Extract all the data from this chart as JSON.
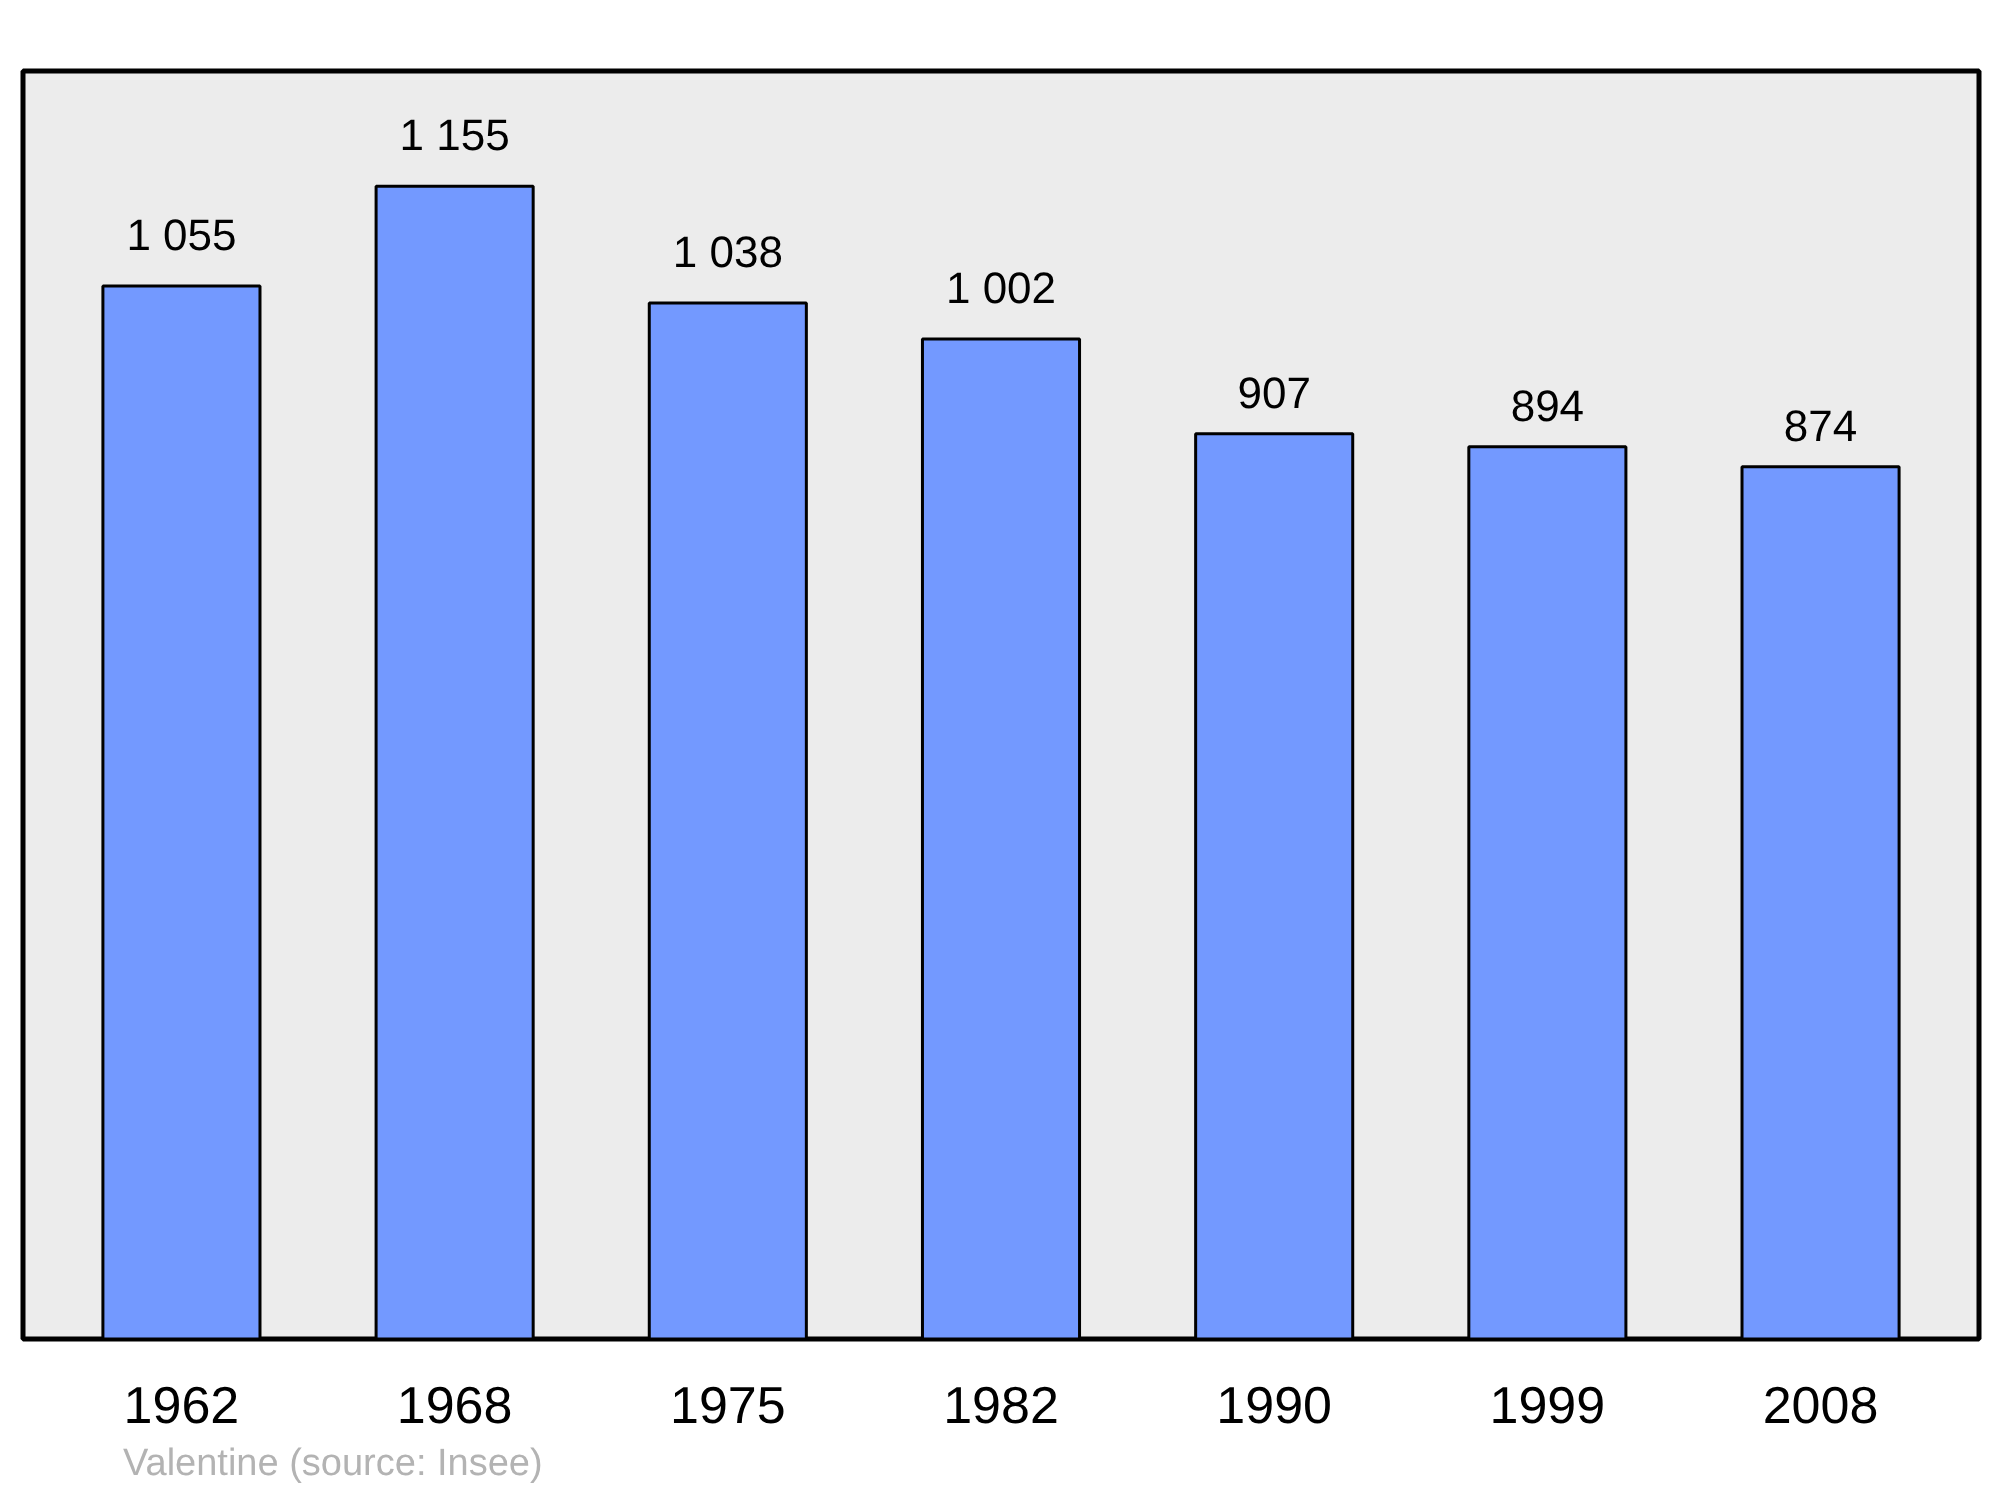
{
  "chart_data": {
    "type": "bar",
    "categories": [
      "1962",
      "1968",
      "1975",
      "1982",
      "1990",
      "1999",
      "2008"
    ],
    "values": [
      1055,
      1155,
      1038,
      1002,
      907,
      894,
      874
    ],
    "value_labels": [
      "1 055",
      "1 155",
      "1 038",
      "1 002",
      "907",
      "894",
      "874"
    ],
    "color": "#7399ff",
    "grid": false,
    "annotations": [
      "Valentine    (source: Insee)"
    ]
  }
}
